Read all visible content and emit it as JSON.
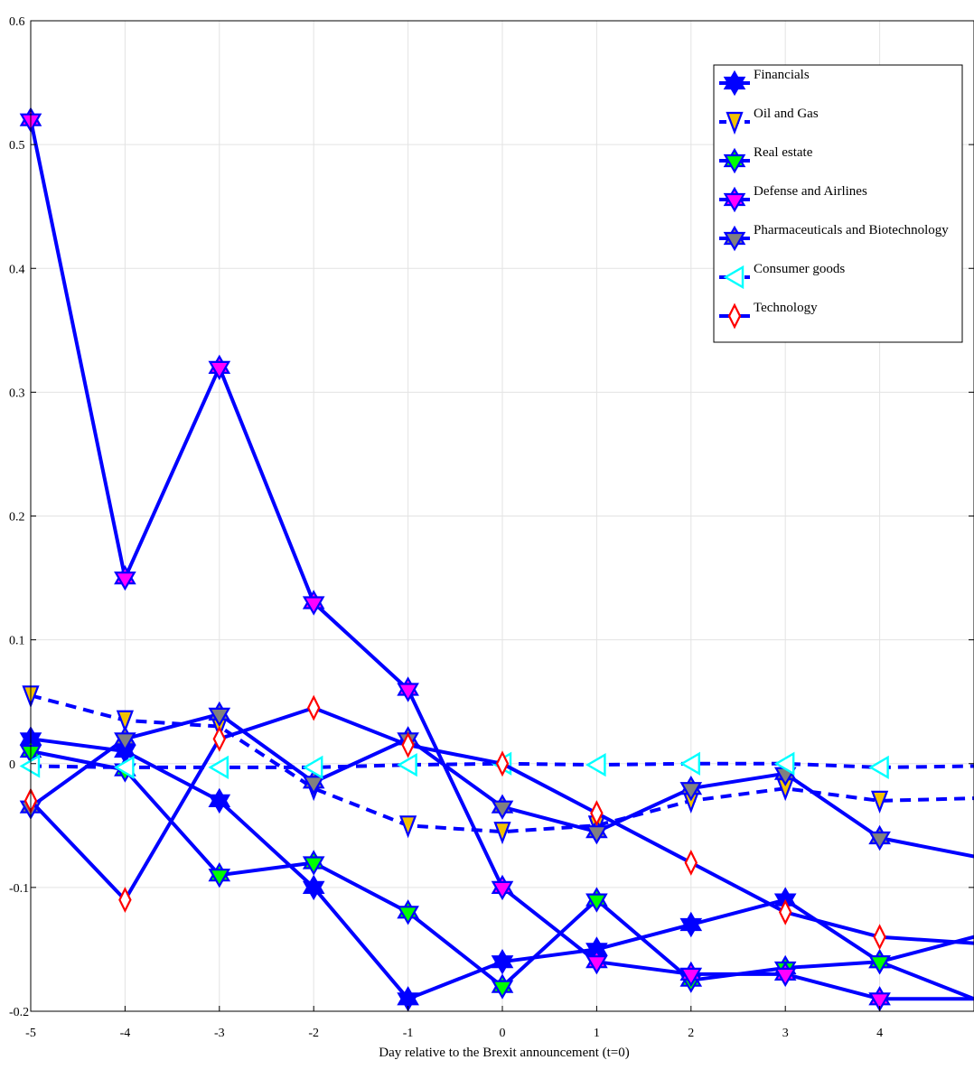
{
  "chart_data": {
    "type": "line",
    "title": "",
    "xlabel": "Day relative to the Brexit announcement (t=0)",
    "ylabel": "",
    "x": [
      -5,
      -4,
      -3,
      -2,
      -1,
      0,
      1,
      2,
      3,
      4,
      5
    ],
    "x_tick_labels": [
      "-5",
      "-4",
      "-3",
      "-2",
      "-1",
      "0",
      "1",
      "2",
      "3",
      "4"
    ],
    "y_tick_labels": [
      "-0.2",
      "-0.1",
      "0",
      "0.1",
      "0.2",
      "0.3",
      "0.4",
      "0.5",
      "0.6"
    ],
    "xlim": [
      -5,
      5
    ],
    "ylim": [
      -0.2,
      0.6
    ],
    "grid": true,
    "legend_position": "top-right",
    "series": [
      {
        "name": "Financials",
        "line_color": "#0000ff",
        "line_style": "solid",
        "marker": "hexagram",
        "marker_face": "#0000ff",
        "values": [
          0.02,
          0.01,
          -0.03,
          -0.1,
          -0.19,
          -0.16,
          -0.15,
          -0.13,
          -0.11,
          -0.16,
          -0.14
        ]
      },
      {
        "name": "Oil and Gas",
        "line_color": "#0000ff",
        "line_style": "dashed",
        "marker": "triangle-down",
        "marker_face": "#f2c200",
        "values": [
          0.055,
          0.035,
          0.03,
          -0.02,
          -0.05,
          -0.055,
          -0.05,
          -0.03,
          -0.02,
          -0.03,
          -0.028
        ]
      },
      {
        "name": "Real estate",
        "line_color": "#0000ff",
        "line_style": "solid",
        "marker": "hexagram",
        "marker_face": "#00ff00",
        "values": [
          0.01,
          -0.005,
          -0.09,
          -0.08,
          -0.12,
          -0.18,
          -0.11,
          -0.175,
          -0.165,
          -0.16,
          -0.19
        ]
      },
      {
        "name": "Defense and Airlines",
        "line_color": "#0000ff",
        "line_style": "solid",
        "marker": "hexagram",
        "marker_face": "#ff00ff",
        "values": [
          0.52,
          0.15,
          0.32,
          0.13,
          0.06,
          -0.1,
          -0.16,
          -0.17,
          -0.17,
          -0.19,
          -0.19
        ]
      },
      {
        "name": "Pharmaceuticals and Biotechnology",
        "line_color": "#0000ff",
        "line_style": "solid",
        "marker": "hexagram",
        "marker_face": "#808080",
        "values": [
          -0.035,
          0.02,
          0.04,
          -0.015,
          0.02,
          -0.035,
          -0.055,
          -0.02,
          -0.008,
          -0.06,
          -0.075
        ]
      },
      {
        "name": "Consumer goods",
        "line_color": "#0000ff",
        "line_style": "dashed",
        "marker": "triangle-left",
        "marker_face": "#00ffff",
        "values": [
          -0.002,
          -0.003,
          -0.003,
          -0.003,
          -0.001,
          0.0,
          -0.001,
          0.0,
          0.0,
          -0.003,
          -0.002
        ]
      },
      {
        "name": "Technology",
        "line_color": "#0000ff",
        "line_style": "solid",
        "marker": "diamond",
        "marker_face": "#ff0000",
        "values": [
          -0.03,
          -0.11,
          0.02,
          0.045,
          0.015,
          0.0,
          -0.04,
          -0.08,
          -0.12,
          -0.14,
          -0.145
        ]
      }
    ]
  }
}
